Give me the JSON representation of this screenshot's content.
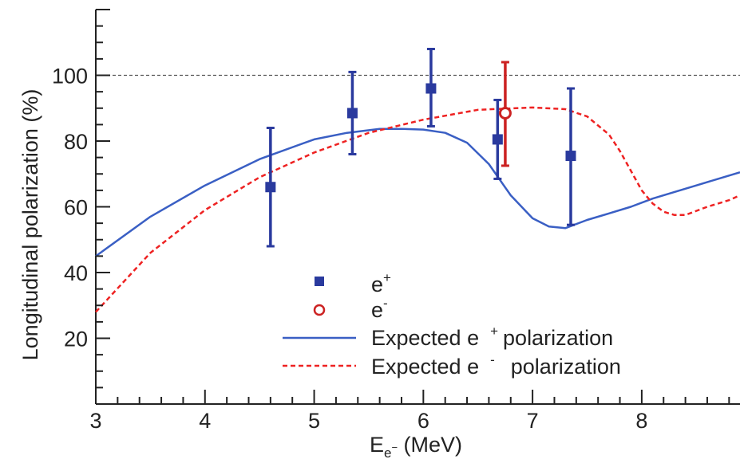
{
  "chart_data": {
    "type": "scatter",
    "title": "",
    "xlabel": {
      "base": "E",
      "sub": "e",
      "subsup": "−",
      "unit": " (MeV)"
    },
    "ylabel": "Longitudinal polarization (%)",
    "xlim": [
      3,
      8.9
    ],
    "ylim": [
      0,
      120
    ],
    "x_ticks": [
      3,
      4,
      5,
      6,
      7,
      8
    ],
    "y_ticks": [
      20,
      40,
      60,
      80,
      100
    ],
    "x_tick_labels": [
      "3",
      "4",
      "5",
      "6",
      "7",
      "8"
    ],
    "y_tick_labels": [
      "20",
      "40",
      "60",
      "80",
      "100"
    ],
    "reference_line": {
      "y": 100,
      "style": "dashed",
      "color": "#555555"
    },
    "grid": false,
    "legend_position": "bottom-center",
    "colors": {
      "positron": "#2a3a9e",
      "electron": "#cc2222",
      "expected_positron": "#3a5fc4",
      "expected_electron": "#ee2222"
    },
    "series": [
      {
        "name": "e+",
        "legend_base": "e",
        "legend_sup": "+",
        "kind": "points",
        "marker": "square",
        "points": [
          {
            "x": 4.6,
            "y": 66,
            "ylo": 48,
            "yhi": 84
          },
          {
            "x": 5.35,
            "y": 88.5,
            "ylo": 76,
            "yhi": 101
          },
          {
            "x": 6.07,
            "y": 96,
            "ylo": 84.5,
            "yhi": 108
          },
          {
            "x": 6.68,
            "y": 80.5,
            "ylo": 68.5,
            "yhi": 92.5
          },
          {
            "x": 7.35,
            "y": 75.5,
            "ylo": 54.5,
            "yhi": 96
          }
        ]
      },
      {
        "name": "e-",
        "legend_base": "e",
        "legend_sup": "-",
        "kind": "points",
        "marker": "open-circle",
        "points": [
          {
            "x": 6.75,
            "y": 88.5,
            "ylo": 72.5,
            "yhi": 104
          }
        ]
      },
      {
        "name": "Expected e+ polarization",
        "legend_text_a": "Expected e",
        "legend_sup": "+",
        "legend_text_b": "polarization",
        "kind": "line",
        "style": "solid",
        "x": [
          3.0,
          3.5,
          4.0,
          4.5,
          5.0,
          5.3,
          5.6,
          5.8,
          6.0,
          6.2,
          6.4,
          6.6,
          6.8,
          7.0,
          7.15,
          7.3,
          7.5,
          7.7,
          7.9,
          8.1,
          8.3,
          8.5,
          8.7,
          8.9
        ],
        "y": [
          45,
          57,
          66.5,
          74.5,
          80.5,
          82.5,
          83.7,
          83.7,
          83.5,
          82.5,
          79.5,
          73,
          63.5,
          56.5,
          54,
          53.5,
          56,
          58,
          60,
          62.5,
          64.5,
          66.5,
          68.5,
          70.5
        ]
      },
      {
        "name": "Expected e- polarization",
        "legend_text_a": "Expected e",
        "legend_sup": "-",
        "legend_text_b": "polarization",
        "kind": "line",
        "style": "dashed",
        "x": [
          3.0,
          3.5,
          4.0,
          4.5,
          5.0,
          5.5,
          6.0,
          6.5,
          7.0,
          7.3,
          7.5,
          7.7,
          7.8,
          7.9,
          8.0,
          8.1,
          8.2,
          8.3,
          8.4,
          8.6,
          8.8,
          8.9
        ],
        "y": [
          28,
          46,
          59,
          69,
          76.5,
          82.5,
          86.5,
          89.5,
          90.2,
          89.7,
          87.5,
          82,
          77,
          71,
          65,
          61,
          58.5,
          57.5,
          57.5,
          60,
          62,
          63.5
        ]
      }
    ]
  }
}
